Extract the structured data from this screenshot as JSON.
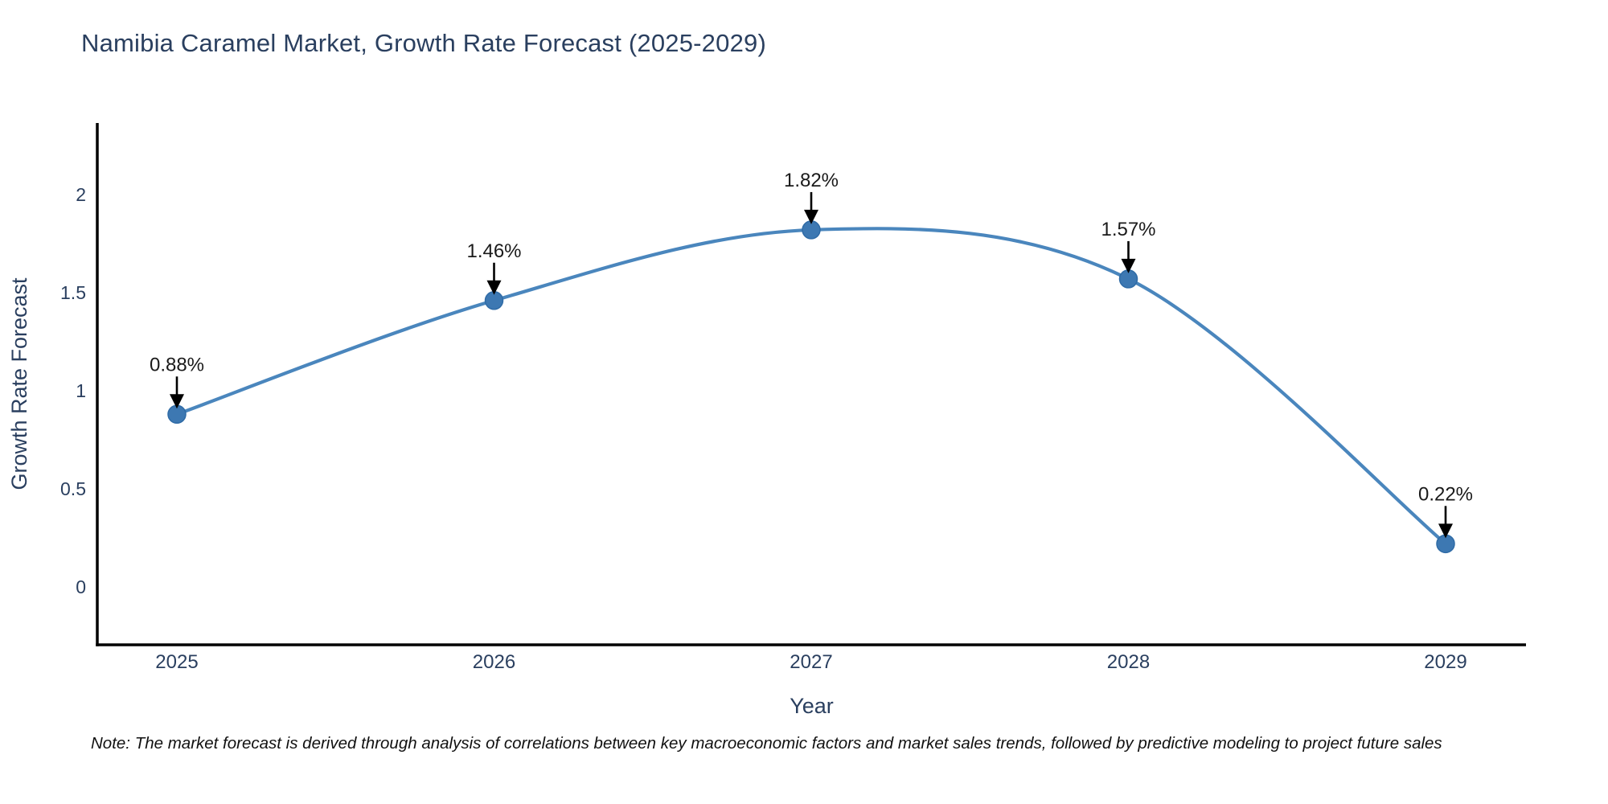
{
  "title": "Namibia Caramel Market, Growth Rate Forecast (2025-2029)",
  "note": "Note: The market forecast is derived through analysis of correlations between key macroeconomic factors and market sales trends, followed by predictive modeling to project future sales",
  "chart_data": {
    "type": "line",
    "title": "Namibia Caramel Market, Growth Rate Forecast (2025-2029)",
    "xlabel": "Year",
    "ylabel": "Growth Rate Forecast",
    "categories": [
      "2025",
      "2026",
      "2027",
      "2028",
      "2029"
    ],
    "values": [
      0.88,
      1.46,
      1.82,
      1.57,
      0.22
    ],
    "point_labels": [
      "0.88%",
      "1.46%",
      "1.82%",
      "1.57%",
      "0.22%"
    ],
    "yticks": [
      0,
      0.5,
      1,
      1.5,
      2
    ],
    "ytick_labels": [
      "0",
      "0.5",
      "1",
      "1.5",
      "2"
    ],
    "ylim": [
      -0.3,
      2.37
    ],
    "grid": false,
    "legend": false,
    "line_shape": "spline",
    "annotation_style": "arrow-down",
    "colors": {
      "line": "#4a86bd",
      "marker_fill": "#3d78b2",
      "marker_edge": "#2f6ba6",
      "axis_line": "#000000",
      "tick_text": "#2a3f5f",
      "axis_title_text": "#2a3f5f",
      "annotation_text": "#1a1a1a",
      "annotation_arrow": "#000000",
      "background": "#ffffff"
    }
  }
}
